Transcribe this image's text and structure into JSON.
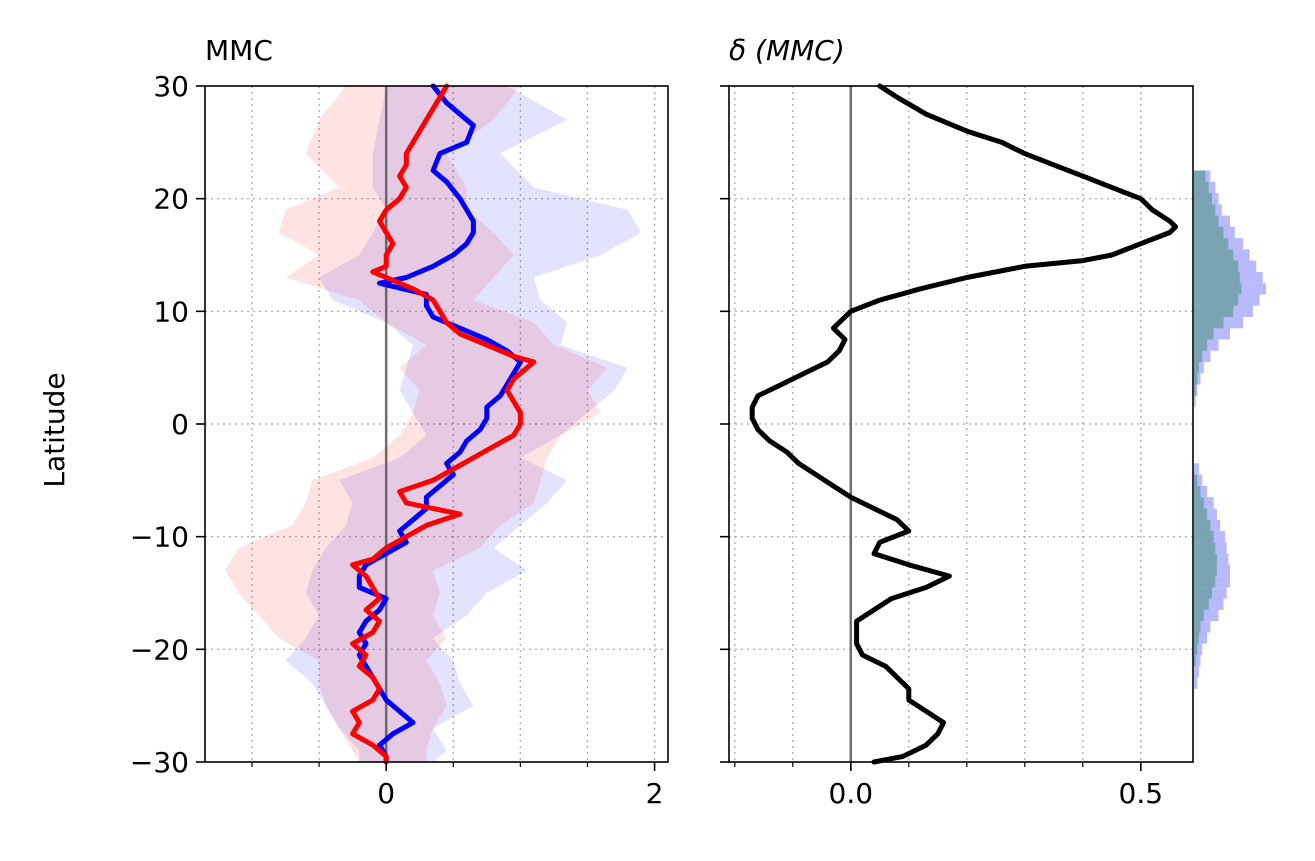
{
  "chart_data": [
    {
      "type": "line",
      "title": "MMC",
      "ylabel": "Latitude",
      "xlim": [
        -1.35,
        2.1
      ],
      "ylim": [
        -30,
        30
      ],
      "xticks": [
        0,
        2
      ],
      "xtick_labels": [
        "0",
        "2"
      ],
      "yticks": [
        -30,
        -20,
        -10,
        0,
        10,
        20,
        30
      ],
      "ytick_labels": [
        "−30",
        "−20",
        "−10",
        "0",
        "10",
        "20",
        "30"
      ],
      "grid": true,
      "zero_line": 0,
      "series": [
        {
          "color": "#0000ff",
          "lat": [
            30,
            28.5,
            27.5,
            26.5,
            25,
            24,
            22.5,
            21.5,
            20,
            19,
            18,
            17,
            16,
            15,
            14,
            13,
            12.5,
            11.5,
            10.5,
            9.5,
            8.5,
            7.5,
            6.5,
            5.5,
            4.5,
            3.5,
            2.5,
            1.5,
            0.5,
            -0.5,
            -1.5,
            -2.5,
            -3.5,
            -4.5,
            -5.5,
            -6.5,
            -7.5,
            -8.5,
            -9.5,
            -10.5,
            -11.5,
            -12.5,
            -13.5,
            -14.5,
            -15.5,
            -16.5,
            -17.5,
            -18.5,
            -19.5,
            -20.5,
            -21.5,
            -22.5,
            -23.5,
            -24.5,
            -25.5,
            -26.5,
            -27.5,
            -28.5,
            -29.5,
            -30
          ],
          "values": [
            0.35,
            0.45,
            0.55,
            0.65,
            0.6,
            0.4,
            0.35,
            0.45,
            0.55,
            0.6,
            0.65,
            0.65,
            0.6,
            0.5,
            0.35,
            0.15,
            -0.05,
            0.3,
            0.3,
            0.35,
            0.55,
            0.75,
            0.9,
            1.0,
            0.95,
            0.9,
            0.85,
            0.75,
            0.75,
            0.7,
            0.6,
            0.55,
            0.45,
            0.5,
            0.4,
            0.3,
            0.3,
            0.2,
            0.1,
            0.15,
            0.0,
            -0.15,
            -0.2,
            -0.2,
            0.0,
            -0.05,
            -0.15,
            -0.2,
            -0.15,
            -0.2,
            -0.15,
            -0.1,
            -0.05,
            0.0,
            0.1,
            0.2,
            0.05,
            -0.05,
            0.0,
            0.0
          ]
        },
        {
          "color": "#ff0000",
          "lat": [
            30,
            29,
            28,
            27,
            26,
            25,
            24,
            23,
            22,
            21,
            20,
            19,
            18,
            17,
            16,
            15,
            14,
            13.5,
            13,
            12,
            11,
            10,
            9,
            8,
            7,
            6,
            5.5,
            5,
            4,
            3,
            2,
            1,
            0,
            -1,
            -2,
            -3,
            -4,
            -5,
            -6,
            -7,
            -8,
            -9,
            -10,
            -11,
            -12,
            -12.5,
            -13.5,
            -14.5,
            -15.5,
            -16.5,
            -17.5,
            -18.5,
            -19.5,
            -20.5,
            -21.5,
            -22.5,
            -23.5,
            -24.5,
            -25.5,
            -26.5,
            -27.5,
            -28.5,
            -29.5,
            -30
          ],
          "values": [
            0.45,
            0.4,
            0.35,
            0.3,
            0.25,
            0.2,
            0.15,
            0.15,
            0.1,
            0.15,
            0.1,
            0.0,
            -0.05,
            0.0,
            0.05,
            0.0,
            0.0,
            -0.1,
            0.0,
            0.2,
            0.35,
            0.4,
            0.45,
            0.55,
            0.75,
            0.95,
            1.1,
            1.05,
            0.95,
            0.9,
            0.95,
            1.0,
            1.0,
            0.95,
            0.8,
            0.65,
            0.5,
            0.35,
            0.1,
            0.15,
            0.55,
            0.3,
            0.15,
            0.0,
            -0.1,
            -0.25,
            -0.15,
            -0.1,
            -0.05,
            -0.15,
            -0.05,
            -0.1,
            -0.25,
            -0.15,
            -0.2,
            -0.1,
            -0.05,
            -0.1,
            -0.25,
            -0.2,
            -0.25,
            -0.1,
            0.0,
            0.0
          ]
        }
      ],
      "bands": [
        {
          "color": "#0000ff",
          "opacity": 0.11,
          "lat": [
            30,
            27,
            24,
            21,
            19,
            17,
            15,
            13,
            11,
            9,
            7,
            5,
            3,
            1,
            -1,
            -3,
            -5,
            -7,
            -9,
            -11,
            -13,
            -15,
            -17,
            -19,
            -21,
            -23,
            -25,
            -27,
            -29,
            -30
          ],
          "lower": [
            0.0,
            -0.05,
            -0.1,
            -0.1,
            0.0,
            -0.1,
            -0.2,
            -0.5,
            -0.4,
            0.0,
            0.2,
            0.15,
            0.1,
            0.2,
            0.3,
            0.1,
            -0.35,
            -0.25,
            -0.3,
            -0.45,
            -0.55,
            -0.6,
            -0.5,
            -0.6,
            -0.75,
            -0.55,
            -0.45,
            -0.35,
            -0.2,
            -0.2
          ],
          "upper": [
            0.9,
            1.35,
            0.85,
            1.1,
            1.8,
            1.9,
            1.6,
            1.1,
            1.15,
            1.35,
            1.3,
            1.8,
            1.7,
            1.5,
            1.3,
            1.0,
            1.35,
            1.2,
            1.0,
            0.8,
            1.05,
            0.75,
            0.6,
            0.35,
            0.5,
            0.55,
            0.65,
            0.35,
            0.45,
            0.35
          ]
        },
        {
          "color": "#ff0000",
          "opacity": 0.11,
          "lat": [
            30,
            27,
            24,
            21,
            19,
            17,
            15,
            13,
            11,
            9,
            7,
            5,
            3,
            1,
            -1,
            -3,
            -5,
            -7,
            -9,
            -11,
            -13,
            -15,
            -17,
            -19,
            -21,
            -23,
            -25,
            -27,
            -29,
            -30
          ],
          "lower": [
            -0.3,
            -0.5,
            -0.6,
            -0.35,
            -0.75,
            -0.8,
            -0.5,
            -0.75,
            -0.2,
            0.0,
            0.3,
            0.1,
            0.25,
            0.2,
            0.1,
            -0.1,
            -0.55,
            -0.6,
            -0.7,
            -1.1,
            -1.2,
            -1.1,
            -0.95,
            -0.8,
            -0.5,
            -0.5,
            -0.45,
            -0.35,
            -0.25,
            -0.2
          ],
          "upper": [
            1.0,
            0.8,
            0.45,
            0.6,
            0.6,
            0.8,
            0.95,
            0.8,
            0.65,
            1.1,
            1.25,
            1.65,
            1.5,
            1.6,
            1.3,
            1.2,
            1.15,
            1.1,
            0.85,
            0.7,
            0.35,
            0.4,
            0.35,
            0.45,
            0.3,
            0.4,
            0.45,
            0.35,
            0.3,
            0.3
          ]
        }
      ]
    },
    {
      "type": "line",
      "title": "δ (MMC)",
      "xlim": [
        -0.21,
        0.59
      ],
      "ylim": [
        -30,
        30
      ],
      "xticks": [
        0.0,
        0.5
      ],
      "xtick_labels": [
        "0.0",
        "0.5"
      ],
      "yticks": [
        -30,
        -20,
        -10,
        0,
        10,
        20,
        30
      ],
      "grid": true,
      "zero_line": 0,
      "series": [
        {
          "color": "#000000",
          "lat": [
            30,
            29,
            27.5,
            26,
            25,
            24,
            23,
            22,
            21,
            20,
            19,
            18,
            17.5,
            17,
            16,
            15,
            14.5,
            14,
            13,
            12,
            11,
            10,
            9.5,
            9,
            8.5,
            7.5,
            6.5,
            5.5,
            4.5,
            3.5,
            2.5,
            1.5,
            0.5,
            -0.5,
            -1.5,
            -2.5,
            -3.5,
            -4.5,
            -5.5,
            -6.5,
            -7.5,
            -8.5,
            -9.5,
            -10.5,
            -11.5,
            -12.5,
            -13.5,
            -14.5,
            -15.5,
            -16.5,
            -17.5,
            -18.5,
            -19.5,
            -20.5,
            -21.5,
            -22.5,
            -23.5,
            -24.5,
            -25.5,
            -26.5,
            -27.5,
            -28.5,
            -29.5,
            -30
          ],
          "values": [
            0.05,
            0.08,
            0.13,
            0.2,
            0.26,
            0.3,
            0.35,
            0.4,
            0.45,
            0.5,
            0.52,
            0.55,
            0.56,
            0.55,
            0.5,
            0.45,
            0.4,
            0.3,
            0.2,
            0.12,
            0.05,
            0.0,
            -0.01,
            -0.02,
            -0.03,
            -0.01,
            -0.02,
            -0.04,
            -0.08,
            -0.12,
            -0.16,
            -0.17,
            -0.17,
            -0.16,
            -0.14,
            -0.11,
            -0.09,
            -0.06,
            -0.03,
            0.0,
            0.04,
            0.08,
            0.1,
            0.05,
            0.04,
            0.1,
            0.17,
            0.13,
            0.07,
            0.04,
            0.01,
            0.01,
            0.01,
            0.02,
            0.06,
            0.08,
            0.1,
            0.1,
            0.13,
            0.16,
            0.15,
            0.13,
            0.09,
            0.04
          ]
        }
      ],
      "histograms": [
        {
          "color": "#8080ff",
          "opacity": 0.55,
          "bin_height": 1,
          "bins_lat": [
            22,
            21,
            20,
            19,
            18,
            17,
            16,
            15,
            14,
            13,
            12,
            11,
            10,
            9,
            8,
            7,
            6,
            5,
            4,
            3,
            2,
            -4,
            -5,
            -6,
            -7,
            -8,
            -9,
            -10,
            -11,
            -12,
            -13,
            -14,
            -15,
            -16,
            -17,
            -18,
            -19,
            -20,
            -21,
            -22,
            -23
          ],
          "counts": [
            10,
            13,
            15,
            17,
            22,
            25,
            30,
            34,
            38,
            42,
            44,
            40,
            36,
            30,
            22,
            15,
            10,
            6,
            4,
            2,
            1,
            3,
            5,
            8,
            12,
            14,
            16,
            19,
            20,
            21,
            22,
            22,
            20,
            18,
            15,
            10,
            8,
            5,
            4,
            3,
            2
          ]
        },
        {
          "color": "#2e8b57",
          "opacity": 0.45,
          "bin_height": 1,
          "bins_lat": [
            22,
            21,
            20,
            19,
            18,
            17,
            16,
            15,
            14,
            13,
            12,
            11,
            10,
            9,
            8,
            7,
            6,
            5,
            4,
            3,
            -5,
            -6,
            -7,
            -8,
            -9,
            -10,
            -11,
            -12,
            -13,
            -14,
            -15,
            -16,
            -17,
            -18,
            -19,
            -20,
            -21
          ],
          "counts": [
            7,
            9,
            11,
            13,
            15,
            18,
            21,
            24,
            27,
            28,
            29,
            27,
            24,
            18,
            12,
            8,
            5,
            3,
            2,
            1,
            2,
            4,
            6,
            8,
            10,
            12,
            13,
            14,
            14,
            13,
            11,
            9,
            6,
            4,
            3,
            2,
            1
          ]
        }
      ]
    }
  ]
}
